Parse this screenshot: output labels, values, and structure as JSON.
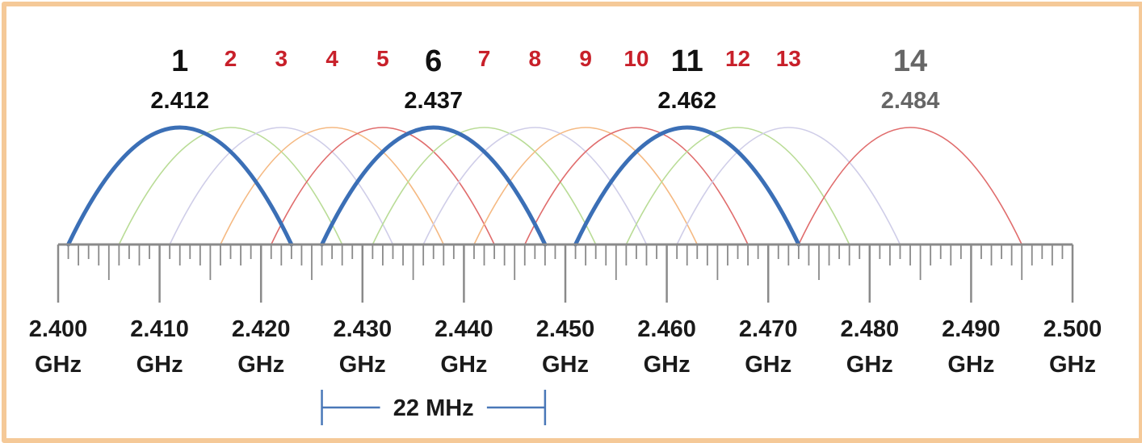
{
  "colors": {
    "border": "#f5c998",
    "main_channel": "#3b6fb6",
    "ch_green": "#b9dc96",
    "ch_lavender": "#cfcde8",
    "ch_orange": "#f5b982",
    "ch_red": "#e06c6c",
    "label_red": "#c8202a",
    "label_black": "#111111",
    "label_gray": "#666666",
    "ruler": "#8a8a8a",
    "bandwidth": "#4a78b8"
  },
  "diagram": {
    "channels": [
      {
        "num": "1",
        "center": 2.412,
        "freq_label": "2.412",
        "emphasis": true
      },
      {
        "num": "2",
        "center": 2.417,
        "emphasis": false
      },
      {
        "num": "3",
        "center": 2.422,
        "emphasis": false
      },
      {
        "num": "4",
        "center": 2.427,
        "emphasis": false
      },
      {
        "num": "5",
        "center": 2.432,
        "emphasis": false
      },
      {
        "num": "6",
        "center": 2.437,
        "freq_label": "2.437",
        "emphasis": true
      },
      {
        "num": "7",
        "center": 2.442,
        "emphasis": false
      },
      {
        "num": "8",
        "center": 2.447,
        "emphasis": false
      },
      {
        "num": "9",
        "center": 2.452,
        "emphasis": false
      },
      {
        "num": "10",
        "center": 2.457,
        "emphasis": false
      },
      {
        "num": "11",
        "center": 2.462,
        "freq_label": "2.462",
        "emphasis": true
      },
      {
        "num": "12",
        "center": 2.467,
        "emphasis": false
      },
      {
        "num": "13",
        "center": 2.472,
        "emphasis": false
      },
      {
        "num": "14",
        "center": 2.484,
        "freq_label": "2.484",
        "emphasis": false,
        "distinct": true
      }
    ],
    "axis": {
      "min": 2.4,
      "max": 2.5,
      "ticks": [
        {
          "value": 2.4,
          "label": "2.400",
          "unit": "GHz"
        },
        {
          "value": 2.41,
          "label": "2.410",
          "unit": "GHz"
        },
        {
          "value": 2.42,
          "label": "2.420",
          "unit": "GHz"
        },
        {
          "value": 2.43,
          "label": "2.430",
          "unit": "GHz"
        },
        {
          "value": 2.44,
          "label": "2.440",
          "unit": "GHz"
        },
        {
          "value": 2.45,
          "label": "2.450",
          "unit": "GHz"
        },
        {
          "value": 2.46,
          "label": "2.460",
          "unit": "GHz"
        },
        {
          "value": 2.47,
          "label": "2.470",
          "unit": "GHz"
        },
        {
          "value": 2.48,
          "label": "2.480",
          "unit": "GHz"
        },
        {
          "value": 2.49,
          "label": "2.490",
          "unit": "GHz"
        },
        {
          "value": 2.5,
          "label": "2.500",
          "unit": "GHz"
        }
      ]
    },
    "bandwidth": {
      "label": "22 MHz",
      "from": 2.426,
      "to": 2.448
    }
  }
}
